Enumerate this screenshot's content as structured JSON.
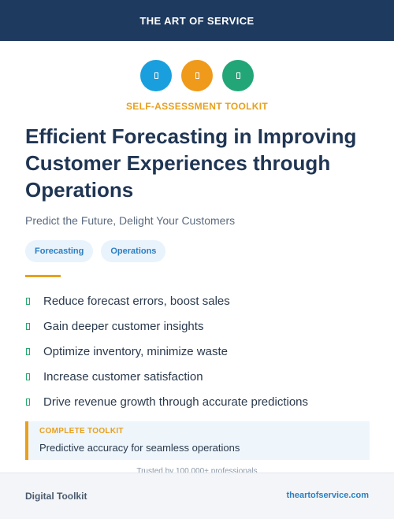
{
  "header": {
    "brand": "THE ART OF SERVICE"
  },
  "icons": [
    {
      "name": "blue-circle-icon",
      "color": "#1a9fde"
    },
    {
      "name": "orange-circle-icon",
      "color": "#ef9a1a"
    },
    {
      "name": "green-circle-icon",
      "color": "#22a677"
    }
  ],
  "eyebrow": "SELF-ASSESSMENT TOOLKIT",
  "title": "Efficient Forecasting in Improving Customer Experiences through Operations",
  "subtitle": "Predict the Future, Delight Your Customers",
  "tags": [
    "Forecasting",
    "Operations"
  ],
  "benefits": [
    "Reduce forecast errors, boost sales",
    "Gain deeper customer insights",
    "Optimize inventory, minimize waste",
    "Increase customer satisfaction",
    "Drive revenue growth through accurate predictions"
  ],
  "callout": {
    "title": "COMPLETE TOOLKIT",
    "text": "Predictive accuracy for seamless operations"
  },
  "trusted": "Trusted by 100,000+ professionals",
  "footer": {
    "left": "Digital Toolkit",
    "right": "theartofservice.com"
  },
  "colors": {
    "navy": "#1e3a5f",
    "accent": "#e8a01c",
    "link": "#2c7fc0",
    "check": "#25a86b"
  }
}
